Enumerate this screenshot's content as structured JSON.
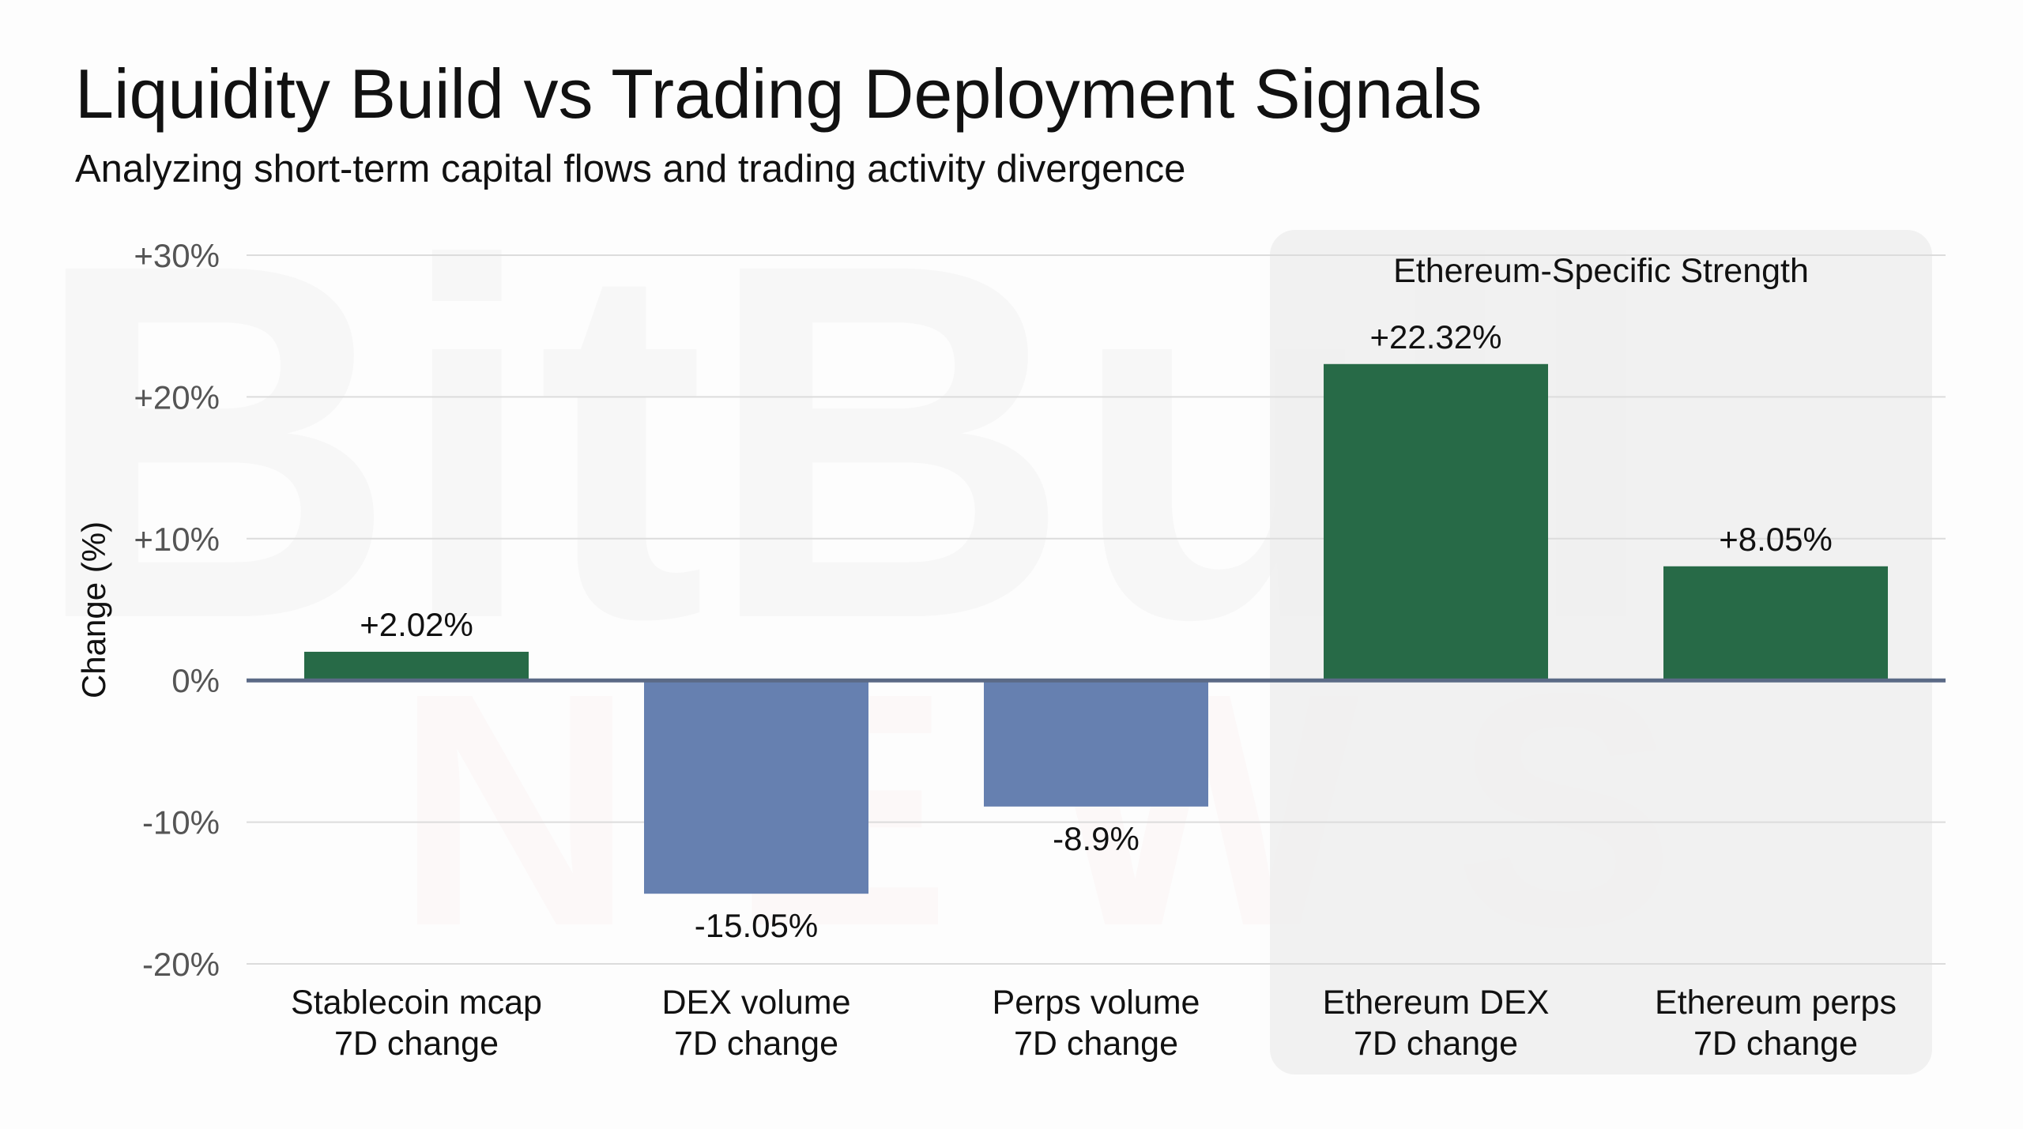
{
  "title": "Liquidity Build vs Trading Deployment Signals",
  "subtitle": "Analyzing short-term capital flows and trading activity divergence",
  "watermark": "BitBull NEWS",
  "colors": {
    "positive": "#276a47",
    "negative": "#6680b0",
    "zero_line": "#5b6a86",
    "grid": "#dcdcdc",
    "highlight": "#efefef"
  },
  "chart_data": {
    "type": "bar",
    "title": "Liquidity Build vs Trading Deployment Signals",
    "subtitle": "Analyzing short-term capital flows and trading activity divergence",
    "xlabel": "",
    "ylabel": "Change (%)",
    "ylim": [
      -20,
      30
    ],
    "yticks": [
      30,
      20,
      10,
      0,
      -10,
      -20
    ],
    "ytick_labels": [
      "+30%",
      "+20%",
      "+10%",
      "0%",
      "-10%",
      "-20%"
    ],
    "grid": true,
    "categories": [
      [
        "Stablecoin mcap",
        "7D change"
      ],
      [
        "DEX volume",
        "7D change"
      ],
      [
        "Perps volume",
        "7D change"
      ],
      [
        "Ethereum DEX",
        "7D change"
      ],
      [
        "Ethereum perps",
        "7D change"
      ]
    ],
    "values": [
      2.02,
      -15.05,
      -8.9,
      22.32,
      8.05
    ],
    "data_labels": [
      "+2.02%",
      "-15.05%",
      "-8.9%",
      "+22.32%",
      "+8.05%"
    ],
    "annotations": [
      {
        "text": "Ethereum-Specific Strength",
        "highlights_categories": [
          3,
          4
        ]
      }
    ]
  }
}
